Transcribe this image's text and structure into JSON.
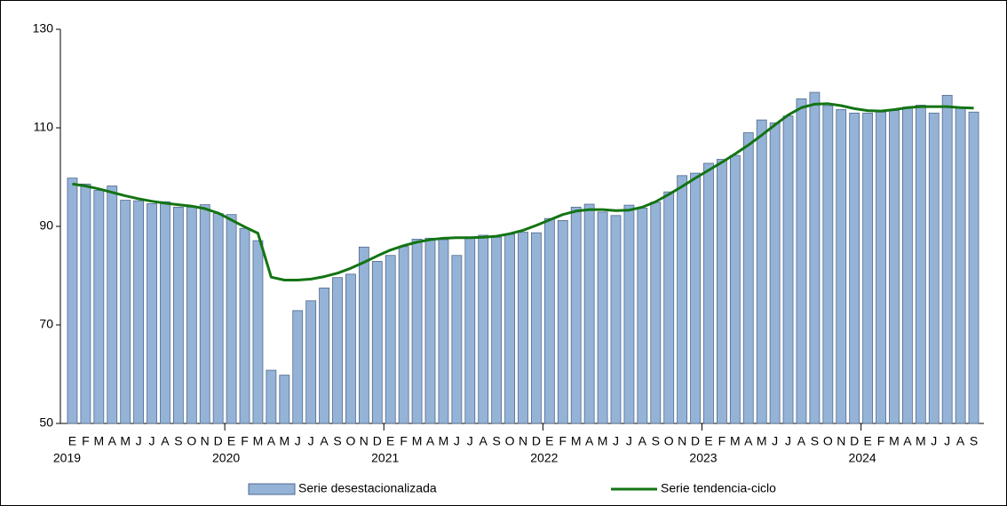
{
  "chart_data": {
    "type": "bar-line",
    "categories": [
      "E",
      "F",
      "M",
      "A",
      "M",
      "J",
      "J",
      "A",
      "S",
      "O",
      "N",
      "D",
      "E",
      "F",
      "M",
      "A",
      "M",
      "J",
      "J",
      "A",
      "S",
      "O",
      "N",
      "D",
      "E",
      "F",
      "M",
      "A",
      "M",
      "J",
      "J",
      "A",
      "S",
      "O",
      "N",
      "D",
      "E",
      "F",
      "M",
      "A",
      "M",
      "J",
      "J",
      "A",
      "S",
      "O",
      "N",
      "D",
      "E",
      "F",
      "M",
      "A",
      "M",
      "J",
      "J",
      "A",
      "S",
      "O",
      "N",
      "D",
      "E",
      "F",
      "M",
      "A",
      "M",
      "J",
      "J",
      "A",
      "S"
    ],
    "year_labels": [
      "2019",
      "2020",
      "2021",
      "2022",
      "2023",
      "2024"
    ],
    "series": [
      {
        "name": "Serie desestacionalizada",
        "kind": "bar",
        "color": "#95b3d7",
        "values": [
          99.8,
          98.6,
          97.3,
          98.2,
          95.3,
          95.2,
          94.6,
          95.0,
          93.9,
          93.9,
          94.4,
          92.6,
          92.4,
          89.6,
          87.1,
          60.8,
          59.8,
          72.9,
          74.9,
          77.5,
          79.6,
          80.3,
          85.8,
          82.9,
          84.1,
          85.9,
          87.4,
          87.6,
          87.3,
          84.1,
          87.6,
          88.2,
          87.8,
          88.4,
          88.8,
          88.7,
          91.6,
          91.2,
          93.9,
          94.5,
          92.9,
          92.2,
          94.3,
          93.7,
          94.9,
          97.0,
          100.3,
          100.8,
          102.8,
          103.6,
          104.4,
          109.0,
          111.6,
          111.0,
          112.4,
          115.9,
          117.2,
          114.5,
          113.7,
          113.0,
          113.0,
          113.2,
          113.5,
          114.2,
          114.6,
          113.0,
          116.6,
          114.2,
          113.2
        ]
      },
      {
        "name": "Serie tendencia-ciclo",
        "kind": "line",
        "color": "#137413",
        "values": [
          98.6,
          98.2,
          97.6,
          96.9,
          96.2,
          95.6,
          95.1,
          94.7,
          94.4,
          94.1,
          93.6,
          92.7,
          91.3,
          89.9,
          88.6,
          79.7,
          79.1,
          79.1,
          79.3,
          79.8,
          80.5,
          81.5,
          82.7,
          84.0,
          85.2,
          86.1,
          86.8,
          87.3,
          87.6,
          87.7,
          87.7,
          87.8,
          88.0,
          88.5,
          89.2,
          90.2,
          91.3,
          92.4,
          93.1,
          93.4,
          93.4,
          93.2,
          93.3,
          93.9,
          95.0,
          96.5,
          98.1,
          99.8,
          101.4,
          103.0,
          104.7,
          106.5,
          108.5,
          110.6,
          112.6,
          114.1,
          114.8,
          114.9,
          114.5,
          113.9,
          113.5,
          113.4,
          113.7,
          114.1,
          114.3,
          114.3,
          114.3,
          114.1,
          114.0
        ]
      }
    ],
    "ylim": [
      50,
      130
    ],
    "yticks": [
      50,
      70,
      90,
      110,
      130
    ],
    "grid": false
  }
}
